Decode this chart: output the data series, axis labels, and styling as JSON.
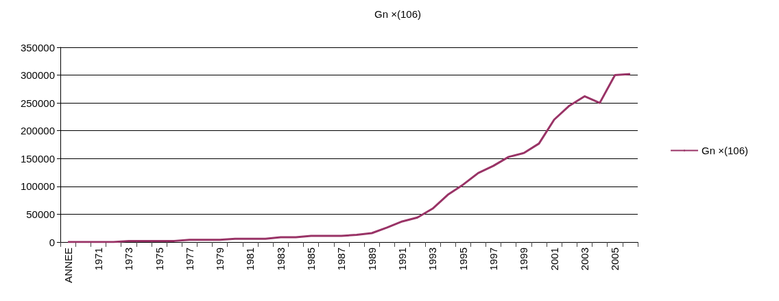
{
  "chart_data": {
    "type": "line",
    "title": "Gn ×(106)",
    "categories": [
      "ANNEE",
      null,
      "1971",
      null,
      "1973",
      null,
      "1975",
      null,
      "1977",
      null,
      "1979",
      null,
      "1981",
      null,
      "1983",
      null,
      "1985",
      null,
      "1987",
      null,
      "1989",
      null,
      "1991",
      null,
      "1993",
      null,
      "1995",
      null,
      "1997",
      null,
      "1999",
      null,
      "2001",
      null,
      "2003",
      null,
      "2005",
      null
    ],
    "series": [
      {
        "name": "Gn ×(106)",
        "color": "#993366",
        "values": [
          0,
          0,
          0,
          0,
          2000,
          2000,
          2000,
          2000,
          4000,
          4000,
          4000,
          6000,
          6000,
          6000,
          8500,
          8500,
          11000,
          11000,
          11000,
          13000,
          16000,
          26000,
          37000,
          44000,
          60000,
          85000,
          103000,
          124000,
          137000,
          153000,
          160000,
          177000,
          220000,
          245000,
          262000,
          250000,
          300000,
          302000
        ]
      }
    ],
    "ylim": [
      0,
      350000
    ],
    "yticks": [
      0,
      50000,
      100000,
      150000,
      200000,
      250000,
      300000,
      350000
    ],
    "grid": "y",
    "legend": "right",
    "marker": "none",
    "line_style": "solid"
  }
}
